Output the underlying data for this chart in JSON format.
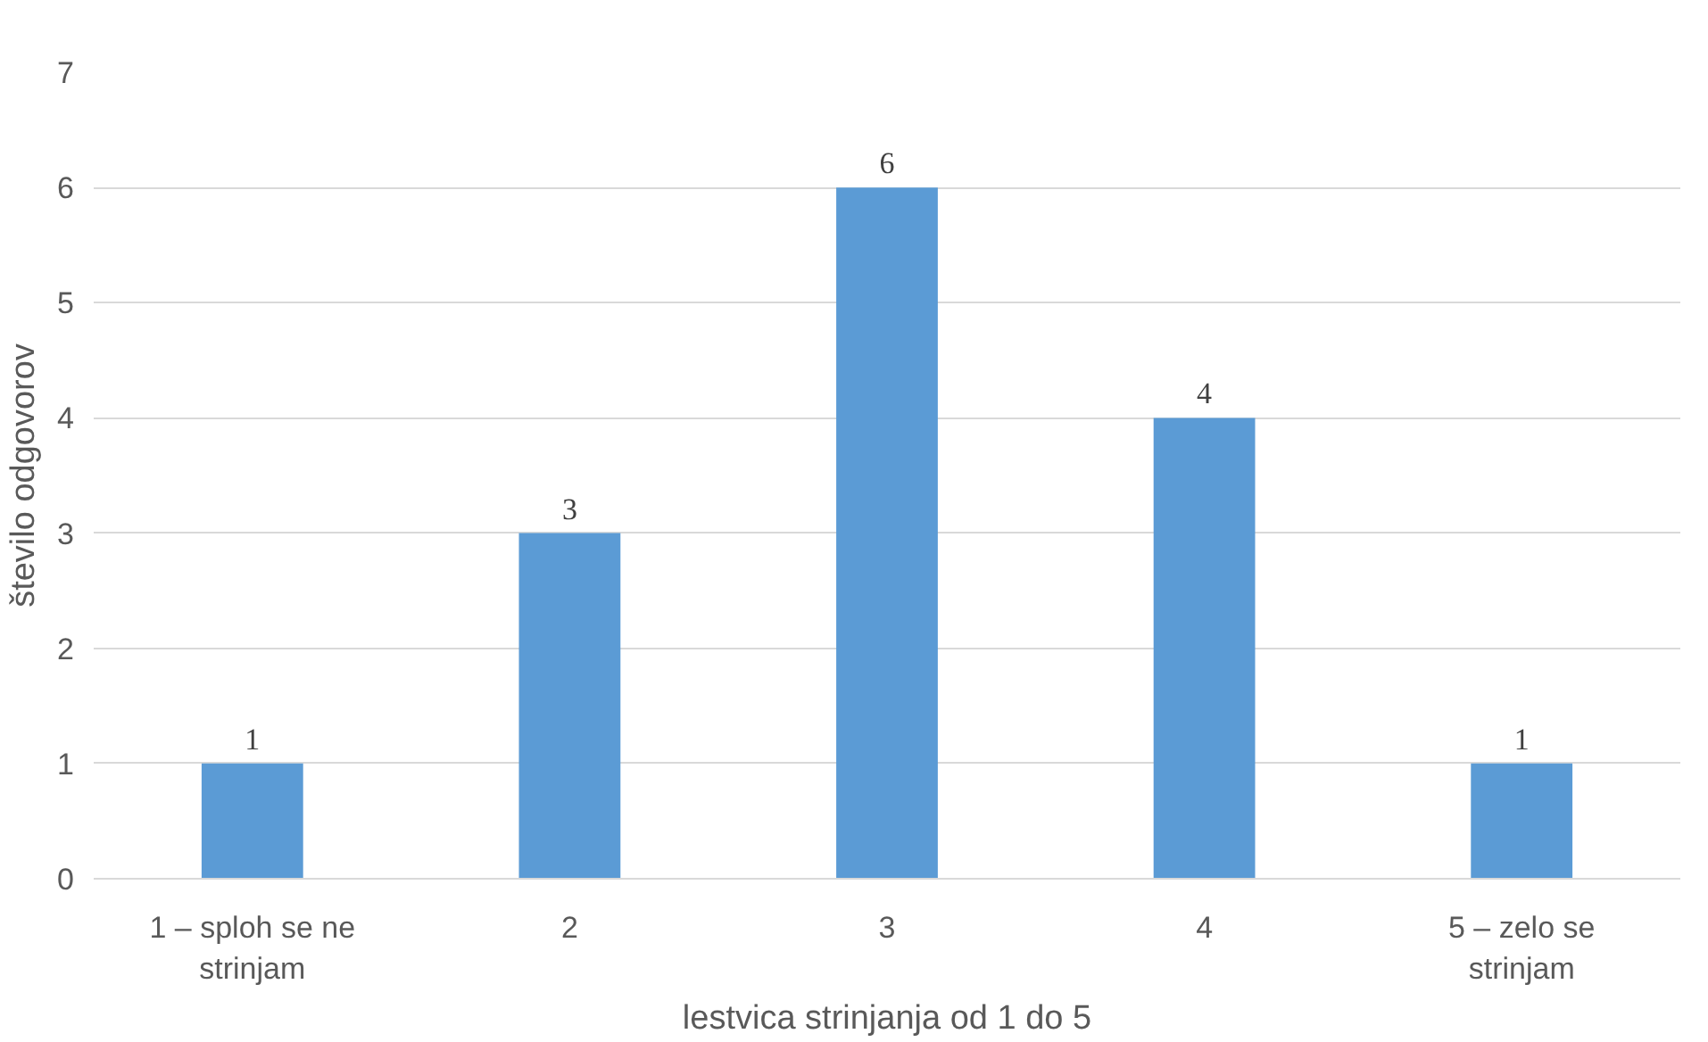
{
  "chart_data": {
    "type": "bar",
    "xlabel": "lestvica strinjanja od 1 do 5",
    "ylabel": "število odgovorov",
    "categories": [
      "1 – sploh se ne strinjam",
      "2",
      "3",
      "4",
      "5 – zelo se strinjam"
    ],
    "values": [
      1,
      3,
      6,
      4,
      1
    ],
    "color": "#5b9bd5",
    "ylim": [
      0,
      7
    ],
    "yticks": [
      0,
      1,
      2,
      3,
      4,
      5,
      6,
      7
    ],
    "grid": "y",
    "data_labels": true
  }
}
